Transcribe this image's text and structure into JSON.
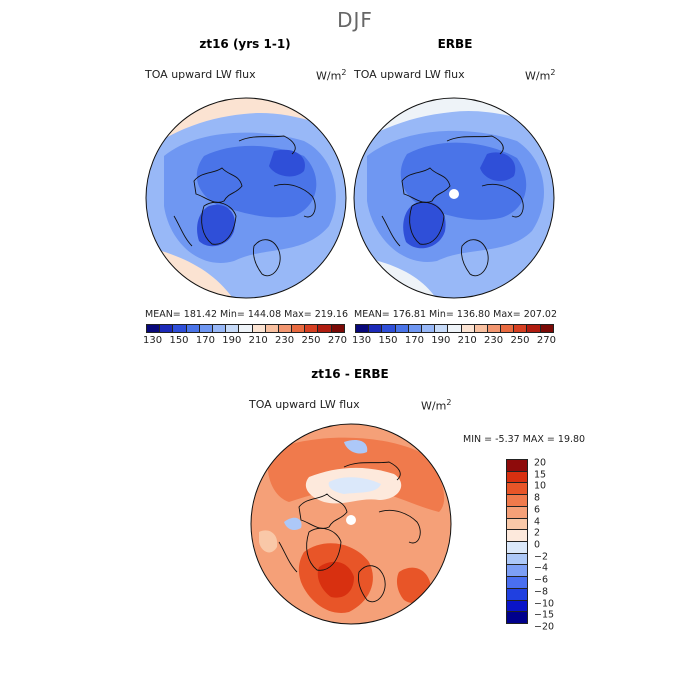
{
  "header": {
    "title": "DJF"
  },
  "panels": [
    {
      "title": "zt16 (yrs 1-1)",
      "variable": "TOA upward LW flux",
      "unit_base": "W/m",
      "unit_exp": "2",
      "stats_text": "MEAN= 181.42   Min= 144.08   Max= 219.16"
    },
    {
      "title": "ERBE",
      "variable": "TOA upward LW flux",
      "unit_base": "W/m",
      "unit_exp": "2",
      "stats_text": "MEAN= 176.81   Min= 136.80   Max= 207.02"
    },
    {
      "title": "zt16 - ERBE",
      "variable": "TOA upward LW flux",
      "unit_base": "W/m",
      "unit_exp": "2",
      "stats_text": "MIN =   -5.37  MAX =   19.80"
    }
  ],
  "chart_data": [
    {
      "type": "heatmap",
      "projection": "north polar stereographic",
      "title": "zt16 (yrs 1-1)",
      "variable": "TOA upward LW flux",
      "units": "W/m^2",
      "mean": 181.42,
      "min": 144.08,
      "max": 219.16,
      "colorbar": {
        "orientation": "horizontal",
        "boundaries": [
          130,
          140,
          150,
          160,
          170,
          180,
          190,
          200,
          210,
          220,
          230,
          240,
          250,
          260,
          270
        ],
        "tick_labels": [
          "130",
          "150",
          "170",
          "190",
          "210",
          "230",
          "250",
          "270"
        ],
        "colors": [
          "#08087a",
          "#1c2ab8",
          "#2f4fd8",
          "#4a74e8",
          "#6f97f2",
          "#98b8f7",
          "#c6daf8",
          "#eef3f8",
          "#fbe3d2",
          "#f8c0a0",
          "#f29670",
          "#e86a40",
          "#d64022",
          "#b01d10",
          "#7a0a06"
        ]
      }
    },
    {
      "type": "heatmap",
      "projection": "north polar stereographic",
      "title": "ERBE",
      "variable": "TOA upward LW flux",
      "units": "W/m^2",
      "mean": 176.81,
      "min": 136.8,
      "max": 207.02,
      "colorbar": {
        "orientation": "horizontal",
        "boundaries": [
          130,
          140,
          150,
          160,
          170,
          180,
          190,
          200,
          210,
          220,
          230,
          240,
          250,
          260,
          270
        ],
        "tick_labels": [
          "130",
          "150",
          "170",
          "190",
          "210",
          "230",
          "250",
          "270"
        ],
        "colors": [
          "#08087a",
          "#1c2ab8",
          "#2f4fd8",
          "#4a74e8",
          "#6f97f2",
          "#98b8f7",
          "#c6daf8",
          "#eef3f8",
          "#fbe3d2",
          "#f8c0a0",
          "#f29670",
          "#e86a40",
          "#d64022",
          "#b01d10",
          "#7a0a06"
        ]
      }
    },
    {
      "type": "heatmap",
      "projection": "north polar stereographic",
      "title": "zt16 - ERBE",
      "variable": "TOA upward LW flux",
      "units": "W/m^2",
      "min": -5.37,
      "max": 19.8,
      "colorbar": {
        "orientation": "vertical",
        "boundaries": [
          -20,
          -15,
          -10,
          -8,
          -6,
          -4,
          -2,
          0,
          2,
          4,
          6,
          8,
          10,
          15,
          20
        ],
        "tick_labels": [
          "20",
          "15",
          "10",
          "8",
          "6",
          "4",
          "2",
          "0",
          "−2",
          "−4",
          "−6",
          "−8",
          "−10",
          "−15",
          "−20"
        ],
        "colors": [
          "#00008c",
          "#0a14c8",
          "#2040e0",
          "#4a6ff0",
          "#7d9ff5",
          "#adc8f8",
          "#dbe8fa",
          "#fde9dc",
          "#f9c8a8",
          "#f5a078",
          "#f07a4c",
          "#e85528",
          "#d83010",
          "#8e0b0b"
        ]
      }
    }
  ]
}
